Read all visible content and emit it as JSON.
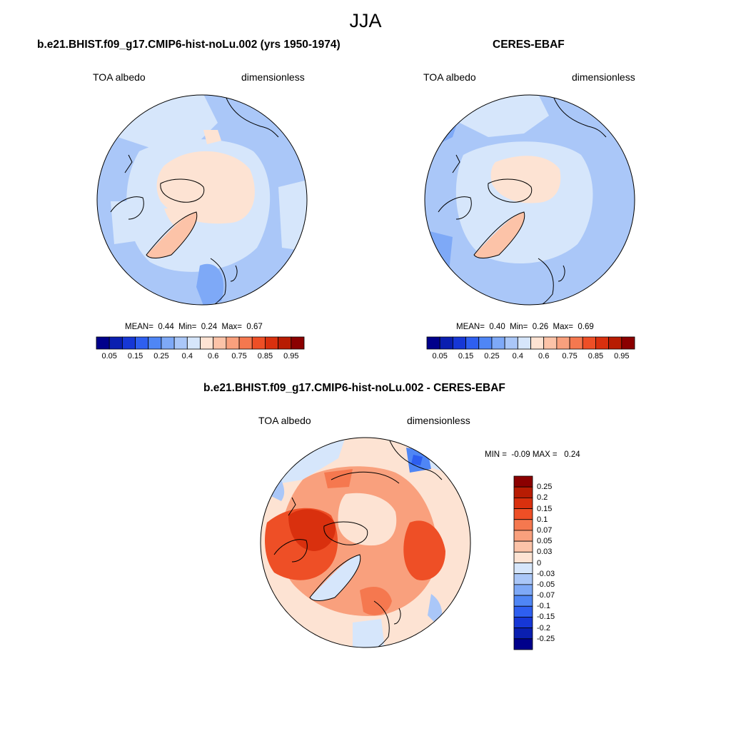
{
  "main_title": "JJA",
  "colors": {
    "bar": [
      "#00008b",
      "#0a1fb0",
      "#1637d6",
      "#2e5ff0",
      "#4f86f5",
      "#7ea9f7",
      "#aac7f8",
      "#d6e6fb",
      "#fde3d3",
      "#fcc3a8",
      "#f9a07d",
      "#f5784f",
      "#ee4f26",
      "#d9300e",
      "#b81c03",
      "#8b0000"
    ],
    "diff": [
      "#8b0000",
      "#b81c03",
      "#d9300e",
      "#ee4f26",
      "#f5784f",
      "#f9a07d",
      "#fcc3a8",
      "#fde3d3",
      "#d6e6fb",
      "#aac7f8",
      "#7ea9f7",
      "#4f86f5",
      "#2e5ff0",
      "#1637d6",
      "#0a1fb0",
      "#00008b"
    ]
  },
  "panels": [
    {
      "title": "b.e21.BHIST.f09_g17.CMIP6-hist-noLu.002 (yrs 1950-1974)",
      "left_label": "TOA albedo",
      "right_label": "dimensionless",
      "stats": {
        "mean_label": "MEAN=",
        "mean": "0.44",
        "min_label": "Min=",
        "min": "0.24",
        "max_label": "Max=",
        "max": "0.67"
      },
      "colorbar_ticks": [
        "0.05",
        "0.15",
        "0.25",
        "0.4",
        "0.6",
        "0.75",
        "0.85",
        "0.95"
      ]
    },
    {
      "title": "CERES-EBAF",
      "left_label": "TOA albedo",
      "right_label": "dimensionless",
      "stats": {
        "mean_label": "MEAN=",
        "mean": "0.40",
        "min_label": "Min=",
        "min": "0.26",
        "max_label": "Max=",
        "max": "0.69"
      },
      "colorbar_ticks": [
        "0.05",
        "0.15",
        "0.25",
        "0.4",
        "0.6",
        "0.75",
        "0.85",
        "0.95"
      ]
    }
  ],
  "diff_panel": {
    "title": "b.e21.BHIST.f09_g17.CMIP6-hist-noLu.002 - CERES-EBAF",
    "left_label": "TOA albedo",
    "right_label": "dimensionless",
    "stats": {
      "min_label": "MIN =",
      "min": "-0.09",
      "max_label": "MAX =",
      "max": "0.24"
    },
    "colorbar_labels": [
      "0.25",
      "0.2",
      "0.15",
      "0.1",
      "0.07",
      "0.05",
      "0.03",
      "0",
      "-0.03",
      "-0.05",
      "-0.07",
      "-0.1",
      "-0.15",
      "-0.2",
      "-0.25"
    ]
  }
}
